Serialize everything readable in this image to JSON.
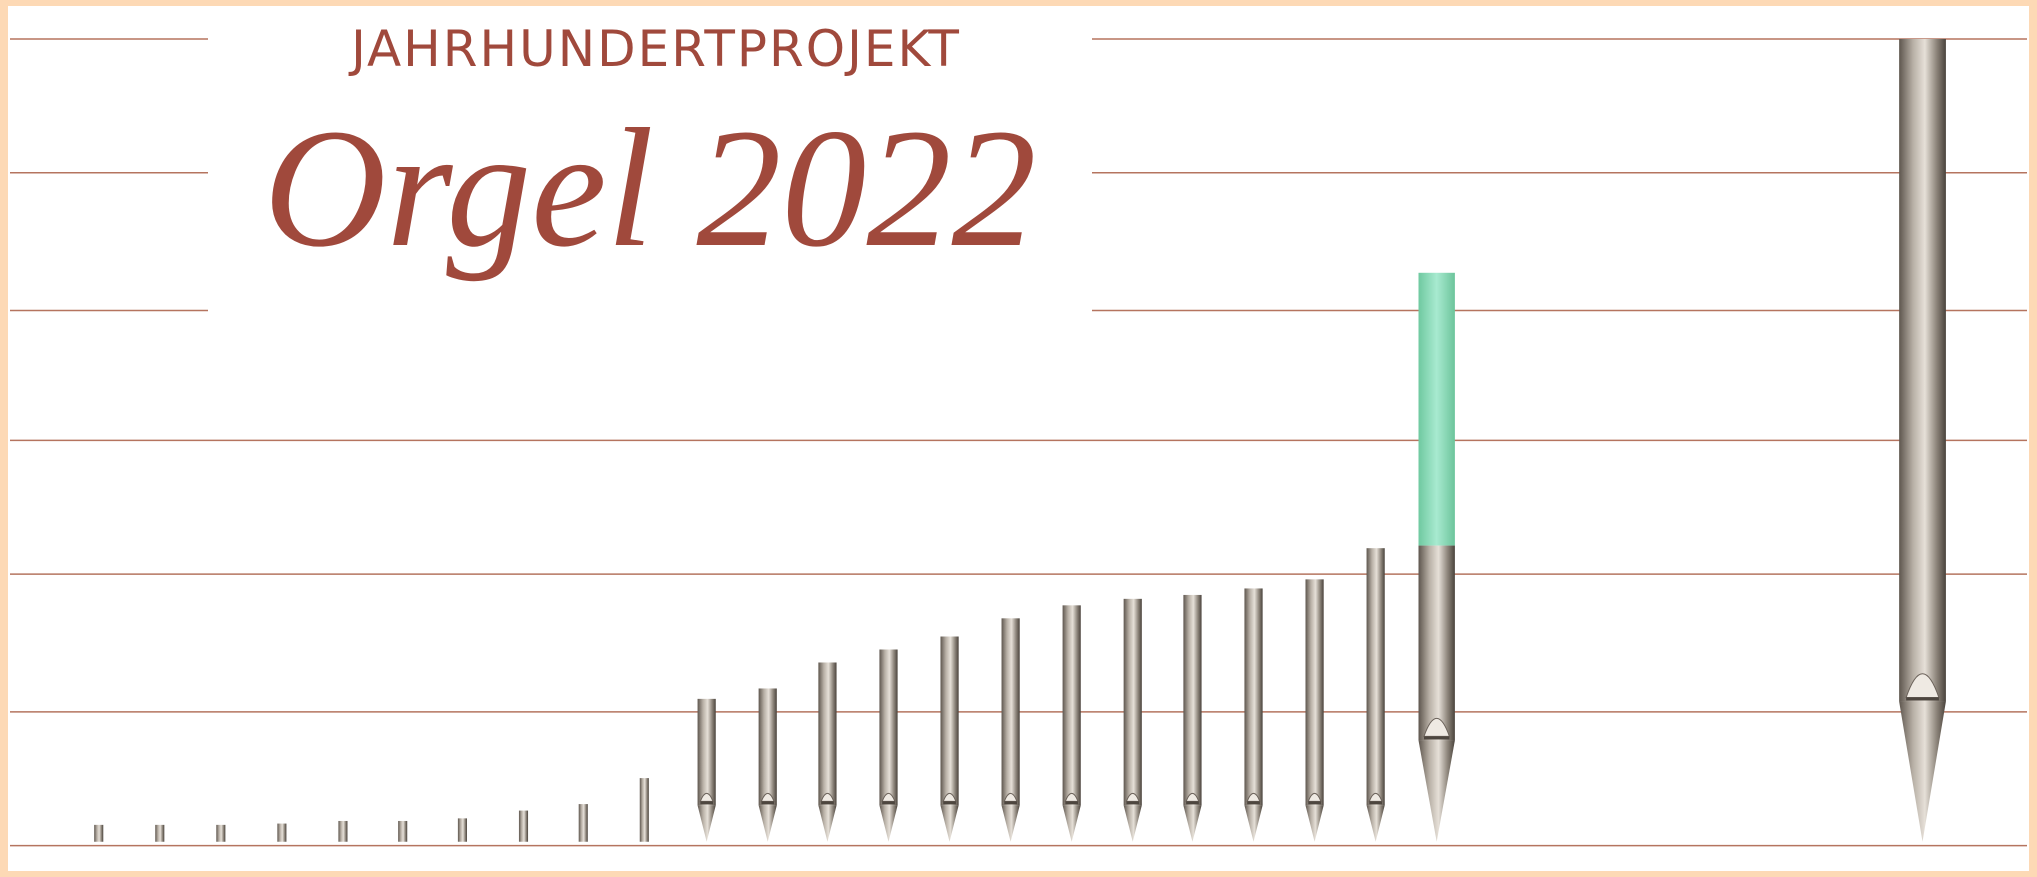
{
  "header": {
    "kicker": "JAHRHUNDERTPROJEKT",
    "title": "Orgel 2022"
  }
}
